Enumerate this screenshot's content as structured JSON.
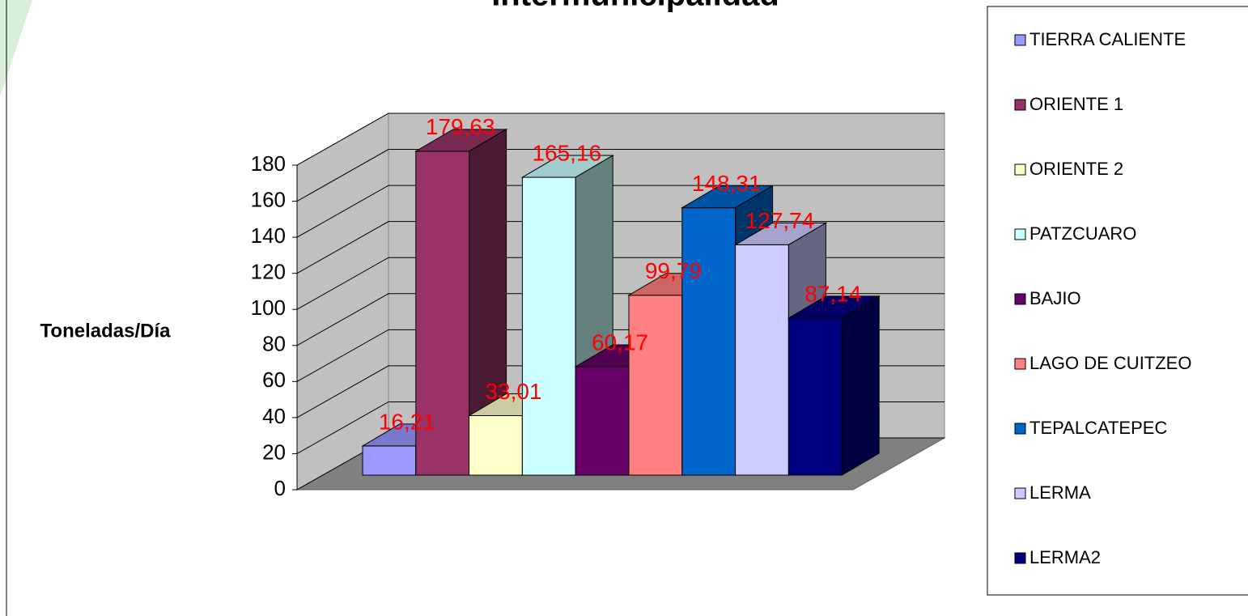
{
  "chart_data": {
    "type": "bar3d",
    "title": "Intermunicipalidad",
    "y_label": "Toneladas/Día",
    "ylim": [
      0,
      180
    ],
    "yticks": [
      0,
      20,
      40,
      60,
      80,
      100,
      120,
      140,
      160,
      180
    ],
    "series": [
      {
        "name": "TIERRA CALIENTE",
        "color": "#9999ff",
        "values": [
          16.21
        ],
        "value_labels": [
          "16,21"
        ]
      },
      {
        "name": "ORIENTE 1",
        "color": "#993366",
        "values": [
          179.63
        ],
        "value_labels": [
          "179,63"
        ]
      },
      {
        "name": "ORIENTE 2",
        "color": "#ffffcc",
        "values": [
          33.01
        ],
        "value_labels": [
          "33,01"
        ]
      },
      {
        "name": "PATZCUARO",
        "color": "#ccffff",
        "values": [
          165.16
        ],
        "value_labels": [
          "165,16"
        ]
      },
      {
        "name": "BAJIO",
        "color": "#660066",
        "values": [
          60.17
        ],
        "value_labels": [
          "60,17"
        ]
      },
      {
        "name": "LAGO DE CUITZEO",
        "color": "#ff8080",
        "values": [
          99.79
        ],
        "value_labels": [
          "99,79"
        ]
      },
      {
        "name": "TEPALCATEPEC",
        "color": "#0066cc",
        "values": [
          148.31
        ],
        "value_labels": [
          "148,31"
        ]
      },
      {
        "name": "LERMA",
        "color": "#ccccff",
        "values": [
          127.74
        ],
        "value_labels": [
          "127,74"
        ]
      },
      {
        "name": "LERMA2",
        "color": "#000080",
        "values": [
          87.14
        ],
        "value_labels": [
          "87,14"
        ]
      }
    ]
  }
}
